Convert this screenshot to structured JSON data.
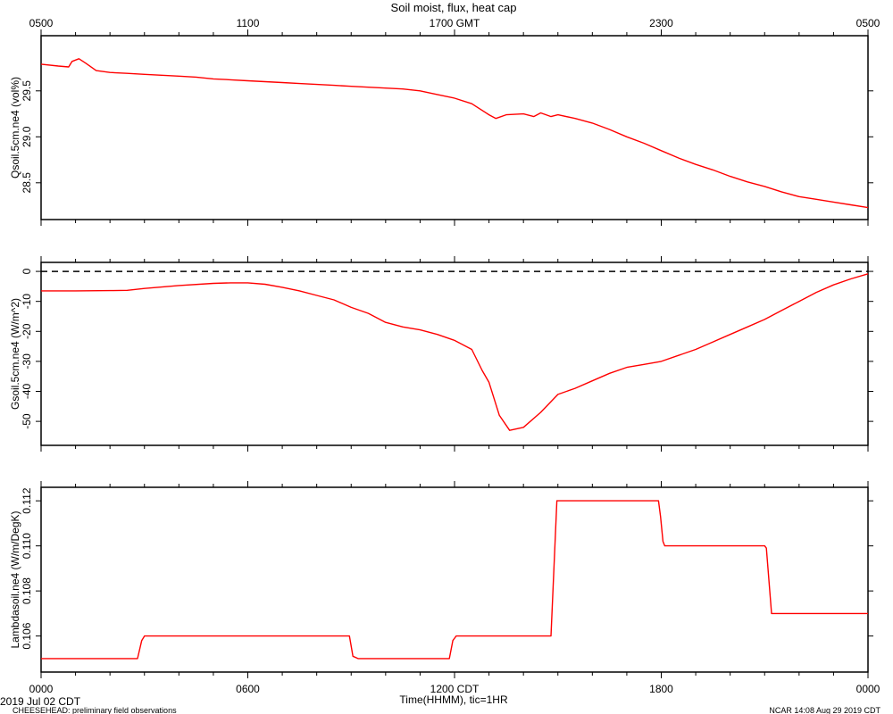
{
  "title": "Soil moist, flux, heat cap",
  "top_axis": {
    "ticks": [
      {
        "x": 0,
        "label": "0500"
      },
      {
        "x": 6,
        "label": "1100"
      },
      {
        "x": 12,
        "label": "1700 GMT"
      },
      {
        "x": 18,
        "label": "2300"
      },
      {
        "x": 24,
        "label": "0500"
      }
    ]
  },
  "bottom_axis": {
    "ticks": [
      {
        "x": 0,
        "label": "0000"
      },
      {
        "x": 6,
        "label": "0600"
      },
      {
        "x": 12,
        "label": "1200 CDT"
      },
      {
        "x": 18,
        "label": "1800"
      },
      {
        "x": 24,
        "label": "0000"
      }
    ],
    "xlabel": "Time(HHMM), tic=1HR"
  },
  "footer": {
    "date": "2019 Jul 02 CDT",
    "project": "CHEESEHEAD: preliminary field observations",
    "stamp": "NCAR 14:08 Aug 29 2019 CDT"
  },
  "colors": {
    "series": "#ff0000",
    "axis": "#000000"
  },
  "chart_data": [
    {
      "type": "line",
      "ylabel": "Qsoil.5cm.ne4 (vol%)",
      "xlim": [
        0,
        24
      ],
      "ylim": [
        28.1,
        30.1
      ],
      "yticks": [
        28.5,
        29.0,
        29.5
      ],
      "ytick_labels": [
        "28.5",
        "29.0",
        "29.5"
      ],
      "series": [
        {
          "x": [
            0,
            0.5,
            0.8,
            0.9,
            1.1,
            1.3,
            1.6,
            2,
            2.5,
            3,
            3.5,
            4,
            4.5,
            5,
            5.5,
            6,
            6.5,
            7,
            7.5,
            8,
            8.5,
            9,
            9.5,
            10,
            10.5,
            11,
            11.5,
            12,
            12.5,
            13,
            13.2,
            13.5,
            14,
            14.3,
            14.5,
            14.8,
            15,
            15.5,
            16,
            16.5,
            17,
            17.5,
            18,
            18.5,
            19,
            19.5,
            20,
            20.5,
            21,
            21.5,
            22,
            22.5,
            23,
            23.5,
            24
          ],
          "y": [
            29.79,
            29.77,
            29.76,
            29.82,
            29.85,
            29.8,
            29.72,
            29.7,
            29.69,
            29.68,
            29.67,
            29.66,
            29.65,
            29.63,
            29.62,
            29.61,
            29.6,
            29.59,
            29.58,
            29.57,
            29.56,
            29.55,
            29.54,
            29.53,
            29.52,
            29.5,
            29.46,
            29.42,
            29.36,
            29.24,
            29.2,
            29.24,
            29.25,
            29.22,
            29.26,
            29.22,
            29.24,
            29.2,
            29.15,
            29.08,
            29.0,
            28.93,
            28.85,
            28.77,
            28.7,
            28.64,
            28.57,
            28.51,
            28.46,
            28.4,
            28.35,
            28.32,
            28.29,
            28.26,
            28.23
          ]
        }
      ]
    },
    {
      "type": "line",
      "ylabel": "Gsoil.5cm.ne4 (W/m^2)",
      "xlim": [
        0,
        24
      ],
      "ylim": [
        -58,
        3
      ],
      "yticks": [
        -50,
        -40,
        -30,
        -20,
        -10,
        0
      ],
      "ytick_labels": [
        "-50",
        "-40",
        "-30",
        "-20",
        "-10",
        "0"
      ],
      "reference_line": {
        "y": 0,
        "style": "dashed"
      },
      "series": [
        {
          "x": [
            0,
            1,
            2,
            2.5,
            3,
            4,
            5,
            5.5,
            6,
            6.5,
            7,
            7.5,
            8,
            8.5,
            9,
            9.5,
            10,
            10.5,
            11,
            11.5,
            12,
            12.5,
            12.8,
            13,
            13.3,
            13.6,
            14,
            14.5,
            15,
            15.5,
            16,
            16.5,
            17,
            17.5,
            18,
            18.5,
            19,
            19.5,
            20,
            20.5,
            21,
            21.5,
            22,
            22.5,
            23,
            23.5,
            24
          ],
          "y": [
            -6.5,
            -6.5,
            -6.4,
            -6.3,
            -5.7,
            -4.7,
            -4,
            -3.8,
            -3.8,
            -4.3,
            -5.3,
            -6.5,
            -8,
            -9.5,
            -12,
            -14,
            -17,
            -18.5,
            -19.5,
            -21,
            -23,
            -26,
            -33,
            -37,
            -48,
            -53,
            -52,
            -47,
            -41,
            -39,
            -36.5,
            -34,
            -32,
            -31,
            -30,
            -28,
            -26,
            -23.5,
            -21,
            -18.5,
            -16,
            -13,
            -10,
            -7,
            -4.5,
            -2.5,
            -0.8
          ]
        }
      ]
    },
    {
      "type": "line",
      "ylabel": "Lambdasoil.ne4 (W/m/DegK)",
      "xlim": [
        0,
        24
      ],
      "ylim": [
        0.1044,
        0.1126
      ],
      "yticks": [
        0.106,
        0.108,
        0.11,
        0.112
      ],
      "ytick_labels": [
        "0.106",
        "0.108",
        "0.110",
        "0.112"
      ],
      "series": [
        {
          "x": [
            0,
            2.8,
            2.92,
            3.0,
            8.95,
            9.05,
            9.2,
            11.85,
            11.95,
            12.05,
            14.8,
            14.97,
            15.12,
            17.92,
            17.98,
            18.05,
            18.1,
            21.0,
            21.05,
            21.2,
            24
          ],
          "y": [
            0.105,
            0.105,
            0.1058,
            0.106,
            0.106,
            0.1051,
            0.105,
            0.105,
            0.1058,
            0.106,
            0.106,
            0.112,
            0.112,
            0.112,
            0.1113,
            0.1102,
            0.11,
            0.11,
            0.1099,
            0.107,
            0.107
          ]
        }
      ]
    }
  ]
}
